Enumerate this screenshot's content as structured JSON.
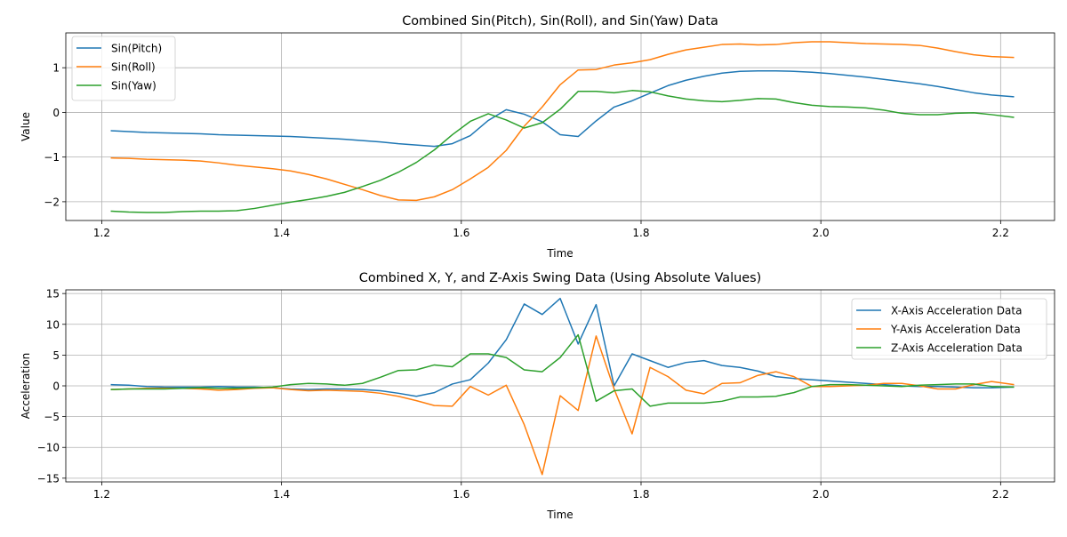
{
  "colors": {
    "blue": "#1f77b4",
    "orange": "#ff7f0e",
    "green": "#2ca02c"
  },
  "chart_data": [
    {
      "type": "line",
      "title": "Combined Sin(Pitch), Sin(Roll), and Sin(Yaw) Data",
      "xlabel": "Time",
      "ylabel": "Value",
      "xlim": [
        1.16,
        2.26
      ],
      "ylim": [
        -2.42,
        1.78
      ],
      "xticks": [
        1.2,
        1.4,
        1.6,
        1.8,
        2.0,
        2.2
      ],
      "xtick_labels": [
        "1.2",
        "1.4",
        "1.6",
        "1.8",
        "2.0",
        "2.2"
      ],
      "yticks": [
        -2,
        -1,
        0,
        1
      ],
      "ytick_labels": [
        "−2",
        "−1",
        "0",
        "1"
      ],
      "grid": true,
      "legend_position": "top-left",
      "x": [
        1.21,
        1.23,
        1.25,
        1.27,
        1.29,
        1.31,
        1.33,
        1.35,
        1.37,
        1.39,
        1.41,
        1.43,
        1.45,
        1.47,
        1.49,
        1.51,
        1.53,
        1.55,
        1.57,
        1.59,
        1.61,
        1.63,
        1.65,
        1.67,
        1.69,
        1.71,
        1.73,
        1.75,
        1.77,
        1.79,
        1.81,
        1.83,
        1.85,
        1.87,
        1.89,
        1.91,
        1.93,
        1.95,
        1.97,
        1.99,
        2.01,
        2.03,
        2.05,
        2.07,
        2.09,
        2.11,
        2.13,
        2.15,
        2.17,
        2.19,
        2.215
      ],
      "series": [
        {
          "name": "Sin(Pitch)",
          "color": "#1f77b4",
          "values": [
            -0.41,
            -0.43,
            -0.45,
            -0.46,
            -0.47,
            -0.48,
            -0.5,
            -0.51,
            -0.52,
            -0.53,
            -0.54,
            -0.56,
            -0.58,
            -0.6,
            -0.63,
            -0.66,
            -0.7,
            -0.73,
            -0.76,
            -0.7,
            -0.52,
            -0.18,
            0.06,
            -0.04,
            -0.21,
            -0.5,
            -0.54,
            -0.19,
            0.12,
            0.26,
            0.43,
            0.6,
            0.72,
            0.81,
            0.88,
            0.92,
            0.93,
            0.93,
            0.92,
            0.9,
            0.87,
            0.83,
            0.79,
            0.74,
            0.69,
            0.64,
            0.58,
            0.51,
            0.44,
            0.39,
            0.35
          ]
        },
        {
          "name": "Sin(Roll)",
          "color": "#ff7f0e",
          "values": [
            -1.02,
            -1.03,
            -1.05,
            -1.06,
            -1.07,
            -1.09,
            -1.13,
            -1.18,
            -1.22,
            -1.26,
            -1.31,
            -1.39,
            -1.49,
            -1.61,
            -1.73,
            -1.86,
            -1.96,
            -1.97,
            -1.89,
            -1.73,
            -1.49,
            -1.23,
            -0.85,
            -0.31,
            0.12,
            0.62,
            0.95,
            0.96,
            1.06,
            1.11,
            1.18,
            1.3,
            1.4,
            1.46,
            1.52,
            1.53,
            1.51,
            1.52,
            1.56,
            1.58,
            1.58,
            1.56,
            1.54,
            1.53,
            1.52,
            1.5,
            1.44,
            1.36,
            1.29,
            1.25,
            1.23
          ]
        },
        {
          "name": "Sin(Yaw)",
          "color": "#2ca02c",
          "values": [
            -2.21,
            -2.23,
            -2.24,
            -2.24,
            -2.22,
            -2.21,
            -2.21,
            -2.2,
            -2.15,
            -2.08,
            -2.01,
            -1.95,
            -1.88,
            -1.79,
            -1.66,
            -1.52,
            -1.34,
            -1.12,
            -0.84,
            -0.5,
            -0.2,
            -0.03,
            -0.17,
            -0.35,
            -0.23,
            0.07,
            0.47,
            0.47,
            0.44,
            0.49,
            0.46,
            0.37,
            0.3,
            0.26,
            0.24,
            0.27,
            0.31,
            0.3,
            0.22,
            0.16,
            0.13,
            0.12,
            0.1,
            0.05,
            -0.02,
            -0.05,
            -0.05,
            -0.02,
            -0.01,
            -0.05,
            -0.11
          ]
        }
      ]
    },
    {
      "type": "line",
      "title": "Combined X, Y, and Z-Axis Swing Data (Using Absolute Values)",
      "xlabel": "Time",
      "ylabel": "Acceleration",
      "xlim": [
        1.16,
        2.26
      ],
      "ylim": [
        -15.6,
        15.6
      ],
      "xticks": [
        1.2,
        1.4,
        1.6,
        1.8,
        2.0,
        2.2
      ],
      "xtick_labels": [
        "1.2",
        "1.4",
        "1.6",
        "1.8",
        "2.0",
        "2.2"
      ],
      "yticks": [
        -15,
        -10,
        -5,
        0,
        5,
        10,
        15
      ],
      "ytick_labels": [
        "−15",
        "−10",
        "−5",
        "0",
        "5",
        "10",
        "15"
      ],
      "grid": true,
      "legend_position": "top-right",
      "x": [
        1.21,
        1.23,
        1.25,
        1.27,
        1.29,
        1.31,
        1.33,
        1.35,
        1.37,
        1.39,
        1.41,
        1.43,
        1.45,
        1.47,
        1.49,
        1.51,
        1.53,
        1.55,
        1.57,
        1.59,
        1.61,
        1.63,
        1.65,
        1.67,
        1.69,
        1.71,
        1.73,
        1.75,
        1.77,
        1.79,
        1.81,
        1.83,
        1.85,
        1.87,
        1.89,
        1.91,
        1.93,
        1.95,
        1.97,
        1.99,
        2.01,
        2.03,
        2.05,
        2.07,
        2.09,
        2.11,
        2.13,
        2.15,
        2.17,
        2.19,
        2.215
      ],
      "series": [
        {
          "name": "X-Axis Acceleration Data",
          "color": "#1f77b4",
          "values": [
            0.2,
            0.1,
            -0.1,
            -0.2,
            -0.2,
            -0.2,
            -0.1,
            -0.2,
            -0.2,
            -0.3,
            -0.5,
            -0.6,
            -0.5,
            -0.5,
            -0.6,
            -0.8,
            -1.2,
            -1.7,
            -1.1,
            0.3,
            1.0,
            3.7,
            7.5,
            13.3,
            11.6,
            14.2,
            6.8,
            13.2,
            0.0,
            5.2,
            4.1,
            3.0,
            3.8,
            4.1,
            3.3,
            3.0,
            2.4,
            1.5,
            1.2,
            1.0,
            0.8,
            0.6,
            0.4,
            0.2,
            0.0,
            -0.1,
            -0.1,
            -0.2,
            -0.3,
            -0.3,
            -0.2
          ]
        },
        {
          "name": "Y-Axis Acceleration Data",
          "color": "#ff7f0e",
          "values": [
            -0.6,
            -0.5,
            -0.4,
            -0.4,
            -0.4,
            -0.5,
            -0.7,
            -0.6,
            -0.4,
            -0.3,
            -0.6,
            -0.8,
            -0.7,
            -0.8,
            -0.9,
            -1.2,
            -1.7,
            -2.4,
            -3.2,
            -3.3,
            -0.1,
            -1.5,
            0.1,
            -6.3,
            -14.4,
            -1.6,
            -4.0,
            8.1,
            -0.5,
            -7.8,
            3.0,
            1.5,
            -0.7,
            -1.3,
            0.4,
            0.5,
            1.7,
            2.3,
            1.5,
            -0.1,
            -0.1,
            0.0,
            0.1,
            0.4,
            0.4,
            0.0,
            -0.5,
            -0.5,
            0.2,
            0.7,
            0.2
          ]
        },
        {
          "name": "Z-Axis Acceleration Data",
          "color": "#2ca02c",
          "values": [
            -0.6,
            -0.5,
            -0.5,
            -0.5,
            -0.4,
            -0.3,
            -0.4,
            -0.4,
            -0.3,
            -0.2,
            0.2,
            0.4,
            0.3,
            0.1,
            0.4,
            1.4,
            2.5,
            2.6,
            3.4,
            3.1,
            5.2,
            5.2,
            4.6,
            2.6,
            2.3,
            4.6,
            8.3,
            -2.5,
            -0.8,
            -0.5,
            -3.3,
            -2.8,
            -2.8,
            -2.8,
            -2.5,
            -1.8,
            -1.8,
            -1.7,
            -1.1,
            -0.1,
            0.2,
            0.2,
            0.1,
            0.0,
            -0.1,
            0.1,
            0.2,
            0.3,
            0.3,
            -0.1,
            -0.2
          ]
        }
      ]
    }
  ]
}
